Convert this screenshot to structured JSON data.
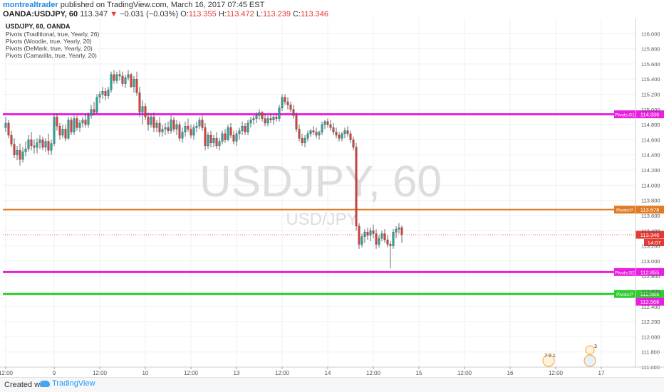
{
  "header": {
    "author": "montrealtrader",
    "published": "published on TradingView.com, March 16, 2017 07:45 EST",
    "symbol": "OANDA:USDJPY, 60",
    "last": "113.347",
    "arrow": "▼",
    "change": "−0.031 (−0.03%)",
    "o_label": "O:",
    "o": "113.355",
    "h_label": "H:",
    "h": "113.472",
    "l_label": "L:",
    "l": "113.239",
    "c_label": "C:",
    "c": "113.346"
  },
  "chart_data": {
    "type": "candlestick",
    "title": "USD/JPY, 60, OANDA",
    "watermark": "USDJPY, 60",
    "watermark_sub": "USD/JPY",
    "legend": [
      "Pivots (Traditional, true, Yearly, 26)",
      "Pivots (Woodie, true, Yearly, 20)",
      "Pivots (DeMark, true, Yearly, 20)",
      "Pivots (Camarilla, true, Yearly, 20)"
    ],
    "ylim": [
      111.6,
      116.2
    ],
    "ytick_step": 0.2,
    "yticks": [
      "111.600",
      "111.800",
      "112.000",
      "112.200",
      "112.400",
      "112.600",
      "112.800",
      "113.000",
      "113.200",
      "113.400",
      "113.600",
      "113.800",
      "114.000",
      "114.200",
      "114.400",
      "114.600",
      "114.800",
      "115.000",
      "115.200",
      "115.400",
      "115.600",
      "115.800",
      "116.000"
    ],
    "xticks": [
      "12:00",
      "9",
      "12:00",
      "10",
      "12:00",
      "13",
      "12:00",
      "14",
      "12:00",
      "15",
      "12:00",
      "16",
      "12:00",
      "17"
    ],
    "xtick_index": [
      0,
      17,
      33,
      49,
      65,
      81,
      97,
      113,
      129,
      145,
      161,
      177,
      193,
      209
    ],
    "xlim": [
      -1,
      221
    ],
    "pivot_lines": [
      {
        "label": "Pivots:S1",
        "value": 114.936,
        "text": "114.936",
        "color": "#e91ee0",
        "width": 3
      },
      {
        "label": "Pivots:P",
        "value": 113.678,
        "text": "113.678",
        "color": "#e07b24",
        "width": 2
      },
      {
        "label": "Pivots:S2",
        "value": 112.855,
        "text": "112.855",
        "color": "#e91ee0",
        "width": 3
      },
      {
        "label": "Pivots:P",
        "value": 112.565,
        "text": "112.565",
        "color": "#2ecc2e",
        "width": 3
      }
    ],
    "extra_price_tag": {
      "value": 112.566,
      "text": "112.566",
      "color": "#e91ee0"
    },
    "last_price": {
      "value": 113.346,
      "text": "113.346",
      "color": "#e53935"
    },
    "countdown": "14:07",
    "up_color": "#26a69a",
    "down_color": "#e53935",
    "candles": [
      [
        114.76,
        114.9,
        114.7,
        114.82
      ],
      [
        114.82,
        114.86,
        114.62,
        114.66
      ],
      [
        114.66,
        114.72,
        114.5,
        114.54
      ],
      [
        114.54,
        114.62,
        114.36,
        114.4
      ],
      [
        114.4,
        114.52,
        114.33,
        114.46
      ],
      [
        114.46,
        114.55,
        114.26,
        114.34
      ],
      [
        114.34,
        114.5,
        114.3,
        114.44
      ],
      [
        114.44,
        114.58,
        114.38,
        114.48
      ],
      [
        114.48,
        114.66,
        114.44,
        114.6
      ],
      [
        114.6,
        114.7,
        114.46,
        114.52
      ],
      [
        114.52,
        114.6,
        114.42,
        114.5
      ],
      [
        114.5,
        114.62,
        114.42,
        114.56
      ],
      [
        114.56,
        114.66,
        114.48,
        114.6
      ],
      [
        114.6,
        114.64,
        114.46,
        114.5
      ],
      [
        114.5,
        114.62,
        114.44,
        114.58
      ],
      [
        114.58,
        114.68,
        114.4,
        114.46
      ],
      [
        114.46,
        114.6,
        114.4,
        114.55
      ],
      [
        114.55,
        114.94,
        114.52,
        114.9
      ],
      [
        114.9,
        114.95,
        114.72,
        114.78
      ],
      [
        114.78,
        114.82,
        114.6,
        114.66
      ],
      [
        114.66,
        114.8,
        114.62,
        114.74
      ],
      [
        114.74,
        114.8,
        114.58,
        114.62
      ],
      [
        114.62,
        114.9,
        114.6,
        114.86
      ],
      [
        114.86,
        114.9,
        114.66,
        114.7
      ],
      [
        114.7,
        114.92,
        114.66,
        114.88
      ],
      [
        114.88,
        114.92,
        114.72,
        114.76
      ],
      [
        114.76,
        114.86,
        114.7,
        114.82
      ],
      [
        114.82,
        114.9,
        114.76,
        114.86
      ],
      [
        114.86,
        114.94,
        114.76,
        114.8
      ],
      [
        114.8,
        114.96,
        114.76,
        114.92
      ],
      [
        114.92,
        115.06,
        114.88,
        115.0
      ],
      [
        115.0,
        115.1,
        114.92,
        114.96
      ],
      [
        114.96,
        115.2,
        114.94,
        115.16
      ],
      [
        115.16,
        115.24,
        115.08,
        115.2
      ],
      [
        115.2,
        115.3,
        115.14,
        115.24
      ],
      [
        115.24,
        115.28,
        115.12,
        115.18
      ],
      [
        115.18,
        115.3,
        115.14,
        115.26
      ],
      [
        115.26,
        115.5,
        115.22,
        115.46
      ],
      [
        115.46,
        115.52,
        115.34,
        115.38
      ],
      [
        115.38,
        115.5,
        115.34,
        115.46
      ],
      [
        115.46,
        115.52,
        115.38,
        115.44
      ],
      [
        115.44,
        115.5,
        115.3,
        115.34
      ],
      [
        115.34,
        115.46,
        115.28,
        115.42
      ],
      [
        115.42,
        115.52,
        115.38,
        115.46
      ],
      [
        115.46,
        115.48,
        115.28,
        115.3
      ],
      [
        115.3,
        115.44,
        115.22,
        115.4
      ],
      [
        115.4,
        115.5,
        115.18,
        115.22
      ],
      [
        115.22,
        115.3,
        114.9,
        114.96
      ],
      [
        114.96,
        115.12,
        114.8,
        115.04
      ],
      [
        115.04,
        115.08,
        114.86,
        114.9
      ],
      [
        114.9,
        114.96,
        114.72,
        114.8
      ],
      [
        114.8,
        114.94,
        114.76,
        114.9
      ],
      [
        114.9,
        114.96,
        114.7,
        114.76
      ],
      [
        114.76,
        114.86,
        114.7,
        114.82
      ],
      [
        114.82,
        114.9,
        114.64,
        114.7
      ],
      [
        114.7,
        114.8,
        114.64,
        114.74
      ],
      [
        114.74,
        114.82,
        114.66,
        114.76
      ],
      [
        114.76,
        114.84,
        114.68,
        114.72
      ],
      [
        114.72,
        114.92,
        114.68,
        114.86
      ],
      [
        114.86,
        114.9,
        114.7,
        114.74
      ],
      [
        114.74,
        114.86,
        114.66,
        114.8
      ],
      [
        114.8,
        114.84,
        114.58,
        114.62
      ],
      [
        114.62,
        114.76,
        114.56,
        114.7
      ],
      [
        114.7,
        114.84,
        114.64,
        114.78
      ],
      [
        114.78,
        114.88,
        114.7,
        114.74
      ],
      [
        114.74,
        114.8,
        114.62,
        114.66
      ],
      [
        114.66,
        114.8,
        114.6,
        114.76
      ],
      [
        114.76,
        114.84,
        114.7,
        114.78
      ],
      [
        114.78,
        114.9,
        114.74,
        114.86
      ],
      [
        114.86,
        114.92,
        114.72,
        114.76
      ],
      [
        114.76,
        114.82,
        114.46,
        114.52
      ],
      [
        114.52,
        114.7,
        114.48,
        114.66
      ],
      [
        114.66,
        114.72,
        114.5,
        114.56
      ],
      [
        114.56,
        114.66,
        114.5,
        114.62
      ],
      [
        114.62,
        114.7,
        114.48,
        114.52
      ],
      [
        114.52,
        114.62,
        114.46,
        114.58
      ],
      [
        114.58,
        114.72,
        114.54,
        114.68
      ],
      [
        114.68,
        114.74,
        114.56,
        114.6
      ],
      [
        114.6,
        114.8,
        114.58,
        114.76
      ],
      [
        114.76,
        114.82,
        114.62,
        114.66
      ],
      [
        114.66,
        114.72,
        114.54,
        114.58
      ],
      [
        114.58,
        114.72,
        114.52,
        114.68
      ],
      [
        114.68,
        114.76,
        114.6,
        114.72
      ],
      [
        114.72,
        114.84,
        114.66,
        114.78
      ],
      [
        114.78,
        114.82,
        114.66,
        114.7
      ],
      [
        114.7,
        114.86,
        114.66,
        114.82
      ],
      [
        114.82,
        114.9,
        114.76,
        114.86
      ],
      [
        114.86,
        114.92,
        114.8,
        114.88
      ],
      [
        114.88,
        114.96,
        114.82,
        114.92
      ],
      [
        114.92,
        115.0,
        114.86,
        114.96
      ],
      [
        114.96,
        114.98,
        114.84,
        114.88
      ],
      [
        114.88,
        114.94,
        114.78,
        114.82
      ],
      [
        114.82,
        114.92,
        114.78,
        114.88
      ],
      [
        114.88,
        114.94,
        114.82,
        114.86
      ],
      [
        114.86,
        114.92,
        114.8,
        114.9
      ],
      [
        114.9,
        114.94,
        114.84,
        114.88
      ],
      [
        114.88,
        115.06,
        114.84,
        115.02
      ],
      [
        115.02,
        115.2,
        114.98,
        115.16
      ],
      [
        115.16,
        115.2,
        115.06,
        115.1
      ],
      [
        115.1,
        115.16,
        115.0,
        115.06
      ],
      [
        115.06,
        115.1,
        114.96,
        115.0
      ],
      [
        115.0,
        115.06,
        114.88,
        114.92
      ],
      [
        114.92,
        114.96,
        114.7,
        114.74
      ],
      [
        114.74,
        114.8,
        114.58,
        114.62
      ],
      [
        114.62,
        114.68,
        114.52,
        114.56
      ],
      [
        114.56,
        114.66,
        114.5,
        114.62
      ],
      [
        114.62,
        114.72,
        114.58,
        114.68
      ],
      [
        114.68,
        114.74,
        114.64,
        114.72
      ],
      [
        114.72,
        114.78,
        114.66,
        114.7
      ],
      [
        114.7,
        114.76,
        114.62,
        114.66
      ],
      [
        114.66,
        114.72,
        114.6,
        114.7
      ],
      [
        114.7,
        114.84,
        114.66,
        114.8
      ],
      [
        114.8,
        114.86,
        114.74,
        114.84
      ],
      [
        114.84,
        114.88,
        114.76,
        114.8
      ],
      [
        114.8,
        114.86,
        114.72,
        114.76
      ],
      [
        114.76,
        114.82,
        114.66,
        114.7
      ],
      [
        114.7,
        114.76,
        114.62,
        114.66
      ],
      [
        114.66,
        114.7,
        114.58,
        114.62
      ],
      [
        114.62,
        114.7,
        114.58,
        114.68
      ],
      [
        114.68,
        114.76,
        114.62,
        114.72
      ],
      [
        114.72,
        114.78,
        114.64,
        114.68
      ],
      [
        114.68,
        114.72,
        114.56,
        114.6
      ],
      [
        114.6,
        114.64,
        114.46,
        114.5
      ],
      [
        114.5,
        114.56,
        113.4,
        113.46
      ],
      [
        113.46,
        113.5,
        113.16,
        113.22
      ],
      [
        113.22,
        113.36,
        113.18,
        113.32
      ],
      [
        113.32,
        113.42,
        113.24,
        113.38
      ],
      [
        113.38,
        113.44,
        113.28,
        113.34
      ],
      [
        113.34,
        113.44,
        113.26,
        113.4
      ],
      [
        113.4,
        113.48,
        113.3,
        113.36
      ],
      [
        113.36,
        113.42,
        113.16,
        113.22
      ],
      [
        113.22,
        113.34,
        113.18,
        113.3
      ],
      [
        113.3,
        113.4,
        113.26,
        113.36
      ],
      [
        113.36,
        113.42,
        113.24,
        113.28
      ],
      [
        113.28,
        113.34,
        113.18,
        113.22
      ],
      [
        113.22,
        113.26,
        112.9,
        113.2
      ],
      [
        113.2,
        113.42,
        113.16,
        113.38
      ],
      [
        113.38,
        113.46,
        113.3,
        113.42
      ],
      [
        113.42,
        113.5,
        113.36,
        113.44
      ],
      [
        113.44,
        113.47,
        113.24,
        113.35
      ]
    ]
  },
  "events": [
    {
      "text": "7 2 1"
    },
    {
      "text": "3"
    }
  ],
  "footer": {
    "created": "Created with",
    "brand": "TradingView"
  },
  "colors": {
    "grid": "#eef0f3",
    "axis_text": "#555555",
    "watermark": "#dddddd"
  }
}
